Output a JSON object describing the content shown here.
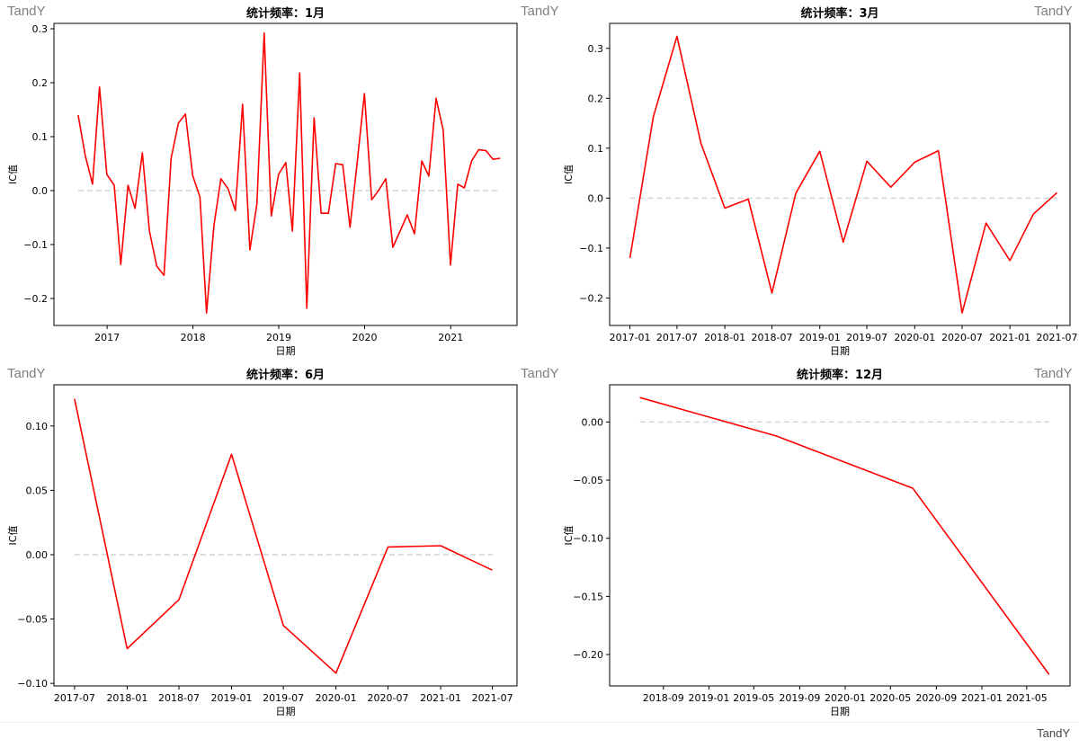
{
  "watermark": "TandY",
  "footer_watermark": "TandY",
  "chart_data": [
    {
      "type": "line",
      "title": "统计频率：1月",
      "xlabel": "日期",
      "ylabel": "IC值",
      "x_axis": "date",
      "xlim": [
        "2016-05-20",
        "2021-10-10"
      ],
      "ylim": [
        -0.25,
        0.31
      ],
      "yticks": [
        -0.2,
        -0.1,
        0.0,
        0.1,
        0.2,
        0.3
      ],
      "ytick_labels": [
        "−0.2",
        "−0.1",
        "0.0",
        "0.1",
        "0.2",
        "0.3"
      ],
      "xticks": [
        "2017-01-01",
        "2018-01-01",
        "2019-01-01",
        "2020-01-01",
        "2021-01-01"
      ],
      "xtick_labels": [
        "2017",
        "2018",
        "2019",
        "2020",
        "2021"
      ],
      "grid": false,
      "reference_line": {
        "y": 0,
        "style": "dashed",
        "color": "#d3d3d3"
      },
      "series": [
        {
          "color": "#ff0000",
          "x": [
            "2016-08-31",
            "2016-09-30",
            "2016-10-31",
            "2016-11-30",
            "2016-12-31",
            "2017-01-31",
            "2017-02-28",
            "2017-03-31",
            "2017-04-30",
            "2017-05-31",
            "2017-06-30",
            "2017-07-31",
            "2017-08-31",
            "2017-09-30",
            "2017-10-31",
            "2017-11-30",
            "2017-12-31",
            "2018-01-31",
            "2018-02-28",
            "2018-03-31",
            "2018-04-30",
            "2018-05-31",
            "2018-06-30",
            "2018-07-31",
            "2018-08-31",
            "2018-09-30",
            "2018-10-31",
            "2018-11-30",
            "2018-12-31",
            "2019-01-31",
            "2019-02-28",
            "2019-03-31",
            "2019-04-30",
            "2019-05-31",
            "2019-06-30",
            "2019-07-31",
            "2019-08-31",
            "2019-09-30",
            "2019-10-31",
            "2019-11-30",
            "2019-12-31",
            "2020-01-31",
            "2020-02-29",
            "2020-03-31",
            "2020-04-30",
            "2020-05-31",
            "2020-06-30",
            "2020-07-31",
            "2020-08-31",
            "2020-09-30",
            "2020-10-31",
            "2020-11-30",
            "2020-12-31",
            "2021-01-31",
            "2021-02-28",
            "2021-03-31",
            "2021-04-30",
            "2021-05-31",
            "2021-06-30",
            "2021-07-31"
          ],
          "values": [
            0.14,
            0.065,
            0.012,
            0.192,
            0.03,
            0.01,
            -0.137,
            0.01,
            -0.033,
            0.07,
            -0.075,
            -0.14,
            -0.157,
            0.06,
            0.125,
            0.142,
            0.028,
            -0.012,
            -0.227,
            -0.065,
            0.022,
            0.003,
            -0.037,
            0.16,
            -0.11,
            -0.025,
            0.292,
            -0.047,
            0.03,
            0.052,
            -0.075,
            0.218,
            -0.218,
            0.135,
            -0.042,
            -0.042,
            0.05,
            0.048,
            -0.068,
            0.05,
            0.18,
            -0.017,
            0.0,
            0.022,
            -0.105,
            -0.075,
            -0.045,
            -0.08,
            0.055,
            0.027,
            0.171,
            0.112,
            -0.138,
            0.012,
            0.005,
            0.055,
            0.076,
            0.074,
            0.058,
            0.06
          ]
        }
      ]
    },
    {
      "type": "line",
      "title": "统计频率：3月",
      "xlabel": "日期",
      "ylabel": "IC值",
      "x_axis": "date",
      "xlim": [
        "2016-10-15",
        "2021-08-20"
      ],
      "ylim": [
        -0.255,
        0.35
      ],
      "yticks": [
        -0.2,
        -0.1,
        0.0,
        0.1,
        0.2,
        0.3
      ],
      "ytick_labels": [
        "−0.2",
        "−0.1",
        "0.0",
        "0.1",
        "0.2",
        "0.3"
      ],
      "xticks": [
        "2017-01-01",
        "2017-07-01",
        "2018-01-01",
        "2018-07-01",
        "2019-01-01",
        "2019-07-01",
        "2020-01-01",
        "2020-07-01",
        "2021-01-01",
        "2021-07-01"
      ],
      "xtick_labels": [
        "2017-01",
        "2017-07",
        "2018-01",
        "2018-07",
        "2019-01",
        "2019-07",
        "2020-01",
        "2020-07",
        "2021-01",
        "2021-07"
      ],
      "grid": false,
      "reference_line": {
        "y": 0,
        "style": "dashed",
        "color": "#d3d3d3"
      },
      "series": [
        {
          "color": "#ff0000",
          "x": [
            "2017-01-01",
            "2017-04-01",
            "2017-07-01",
            "2017-10-01",
            "2018-01-01",
            "2018-04-01",
            "2018-07-01",
            "2018-10-01",
            "2019-01-01",
            "2019-04-01",
            "2019-07-01",
            "2019-10-01",
            "2020-01-01",
            "2020-04-01",
            "2020-07-01",
            "2020-10-01",
            "2021-01-01",
            "2021-04-01",
            "2021-07-01"
          ],
          "values": [
            -0.12,
            0.163,
            0.324,
            0.11,
            -0.02,
            -0.002,
            -0.19,
            0.01,
            0.094,
            -0.088,
            0.074,
            0.022,
            0.072,
            0.095,
            -0.23,
            -0.05,
            -0.125,
            -0.032,
            0.011
          ]
        }
      ]
    },
    {
      "type": "line",
      "title": "统计频率：6月",
      "xlabel": "日期",
      "ylabel": "IC值",
      "x_axis": "date",
      "xlim": [
        "2017-04-20",
        "2021-09-25"
      ],
      "ylim": [
        -0.102,
        0.132
      ],
      "yticks": [
        -0.1,
        -0.05,
        0.0,
        0.05,
        0.1
      ],
      "ytick_labels": [
        "−0.10",
        "−0.05",
        "0.00",
        "0.05",
        "0.10"
      ],
      "xticks": [
        "2017-07-01",
        "2018-01-01",
        "2018-07-01",
        "2019-01-01",
        "2019-07-01",
        "2020-01-01",
        "2020-07-01",
        "2021-01-01",
        "2021-07-01"
      ],
      "xtick_labels": [
        "2017-07",
        "2018-01",
        "2018-07",
        "2019-01",
        "2019-07",
        "2020-01",
        "2020-07",
        "2021-01",
        "2021-07"
      ],
      "grid": false,
      "reference_line": {
        "y": 0,
        "style": "dashed",
        "color": "#d3d3d3"
      },
      "series": [
        {
          "color": "#ff0000",
          "x": [
            "2017-07-01",
            "2018-01-01",
            "2018-07-01",
            "2019-01-01",
            "2019-07-01",
            "2020-01-01",
            "2020-07-01",
            "2021-01-01",
            "2021-07-01"
          ],
          "values": [
            0.121,
            -0.073,
            -0.035,
            0.078,
            -0.055,
            -0.092,
            0.006,
            0.007,
            -0.012
          ]
        }
      ]
    },
    {
      "type": "line",
      "title": "统计频率：12月",
      "xlabel": "日期",
      "ylabel": "IC值",
      "x_axis": "date",
      "xlim": [
        "2018-04-10",
        "2021-08-25"
      ],
      "ylim": [
        -0.227,
        0.032
      ],
      "yticks": [
        -0.2,
        -0.15,
        -0.1,
        -0.05,
        0.0
      ],
      "ytick_labels": [
        "−0.20",
        "−0.15",
        "−0.10",
        "−0.05",
        "0.00"
      ],
      "xticks": [
        "2018-09-01",
        "2019-01-01",
        "2019-05-01",
        "2019-09-01",
        "2020-01-01",
        "2020-05-01",
        "2020-09-01",
        "2021-01-01",
        "2021-05-01"
      ],
      "xtick_labels": [
        "2018-09",
        "2019-01",
        "2019-05",
        "2019-09",
        "2020-01",
        "2020-05",
        "2020-09",
        "2021-01",
        "2021-05"
      ],
      "grid": false,
      "reference_line": {
        "y": 0,
        "style": "dashed",
        "color": "#d3d3d3"
      },
      "series": [
        {
          "color": "#ff0000",
          "x": [
            "2018-06-30",
            "2019-06-30",
            "2020-06-30",
            "2021-06-30"
          ],
          "values": [
            0.021,
            -0.012,
            -0.057,
            -0.217
          ]
        }
      ]
    }
  ]
}
